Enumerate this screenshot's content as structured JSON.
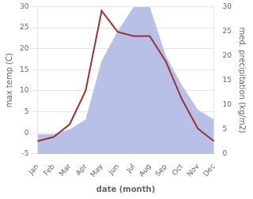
{
  "chart_data": {
    "type": "line",
    "xlabel": "date (month)",
    "ylabel": "max temp (C)",
    "y2label": "med. precipitation (kg/m2)",
    "categories": [
      "Jan",
      "Feb",
      "Mar",
      "Apr",
      "May",
      "Jun",
      "Jul",
      "Aug",
      "Sep",
      "Oct",
      "Nov",
      "Dec"
    ],
    "series": [
      {
        "type": "area",
        "axis": "y2",
        "color": "#b8c0e8",
        "values": [
          4,
          4,
          5,
          7,
          19,
          25,
          30,
          30,
          20,
          14,
          9,
          7
        ]
      },
      {
        "type": "line",
        "color": "#993333",
        "values": [
          -2,
          -1,
          2,
          10,
          29,
          24,
          23,
          23,
          17,
          8,
          1,
          -2
        ]
      }
    ],
    "ylim": [
      -5,
      30
    ],
    "yticks": [
      -5,
      0,
      5,
      10,
      15,
      20,
      25,
      30
    ],
    "y2lim": [
      0,
      30
    ],
    "y2ticks": [
      0,
      5,
      10,
      15,
      20,
      25,
      30
    ],
    "grid": true
  }
}
